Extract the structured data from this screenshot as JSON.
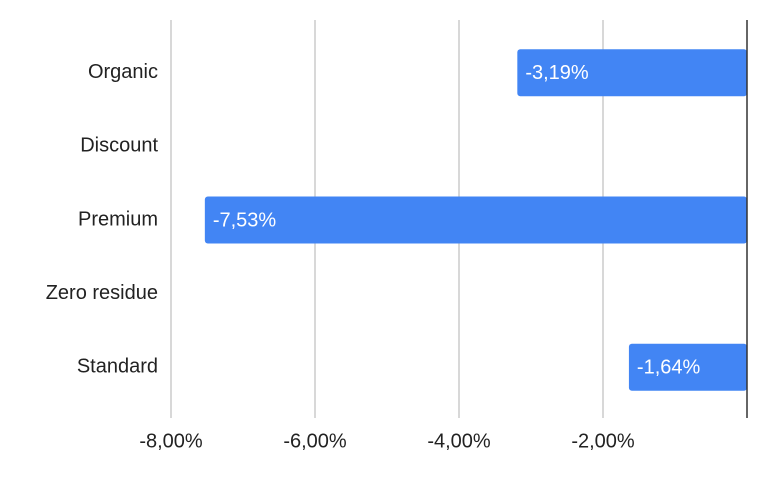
{
  "chart_data": {
    "type": "bar",
    "orientation": "horizontal",
    "categories": [
      "Organic",
      "Discount",
      "Premium",
      "Zero residue",
      "Standard"
    ],
    "values": [
      -3.19,
      null,
      -7.53,
      null,
      -1.64
    ],
    "value_labels": [
      "-3,19%",
      null,
      "-7,53%",
      null,
      "-1,64%"
    ],
    "color": "#4285f4",
    "xlim": [
      -8,
      0
    ],
    "xticks": [
      {
        "value": -8,
        "label": "-8,00%"
      },
      {
        "value": -6,
        "label": "-6,00%"
      },
      {
        "value": -4,
        "label": "-4,00%"
      },
      {
        "value": -2,
        "label": "-2,00%"
      }
    ],
    "grid": true
  }
}
